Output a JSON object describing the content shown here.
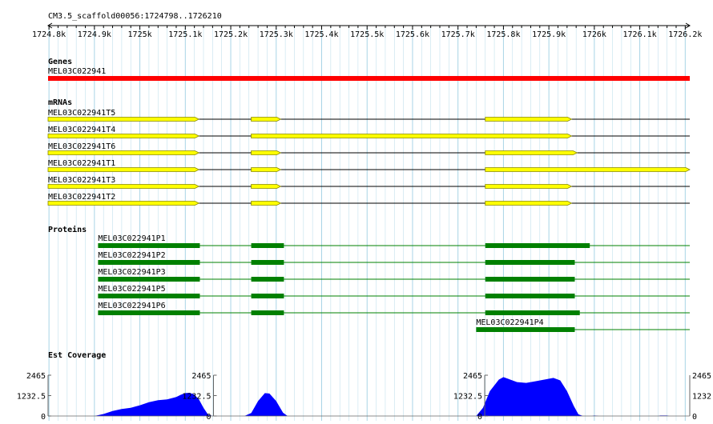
{
  "region": {
    "label": "CM3.5_scaffold00056:1724798..1726210",
    "start": 1724798,
    "end": 1726210
  },
  "ruler": {
    "ticks": [
      {
        "pos": 1724800,
        "label": "1724.8k"
      },
      {
        "pos": 1724900,
        "label": "1724.9k"
      },
      {
        "pos": 1725000,
        "label": "1725k"
      },
      {
        "pos": 1725100,
        "label": "1725.1k"
      },
      {
        "pos": 1725200,
        "label": "1725.2k"
      },
      {
        "pos": 1725300,
        "label": "1725.3k"
      },
      {
        "pos": 1725400,
        "label": "1725.4k"
      },
      {
        "pos": 1725500,
        "label": "1725.5k"
      },
      {
        "pos": 1725600,
        "label": "1725.6k"
      },
      {
        "pos": 1725700,
        "label": "1725.7k"
      },
      {
        "pos": 1725800,
        "label": "1725.8k"
      },
      {
        "pos": 1725900,
        "label": "1725.9k"
      },
      {
        "pos": 1726000,
        "label": "1726k"
      },
      {
        "pos": 1726100,
        "label": "1726.1k"
      },
      {
        "pos": 1726200,
        "label": "1726.2k"
      }
    ]
  },
  "colors": {
    "grid": "#a8d4e6",
    "gene": "#ff0000",
    "mrna_fill": "#ffff00",
    "mrna_outline": "#888800",
    "protein": "#008000",
    "coverage": "#0000ff",
    "line": "#000000"
  },
  "tracks": {
    "genes": {
      "title": "Genes",
      "items": [
        {
          "name": "MEL03C022941",
          "start": 1724798,
          "end": 1726210
        }
      ]
    },
    "mrnas": {
      "title": "mRNAs",
      "items": [
        {
          "name": "MEL03C022941T5",
          "exons": [
            [
              1724798,
              1725130
            ],
            [
              1725245,
              1725310
            ],
            [
              1725760,
              1725950
            ]
          ]
        },
        {
          "name": "MEL03C022941T4",
          "exons": [
            [
              1724798,
              1725130
            ],
            [
              1725245,
              1725950
            ]
          ]
        },
        {
          "name": "MEL03C022941T6",
          "exons": [
            [
              1724798,
              1725130
            ],
            [
              1725245,
              1725310
            ],
            [
              1725760,
              1725962
            ]
          ]
        },
        {
          "name": "MEL03C022941T1",
          "exons": [
            [
              1724798,
              1725130
            ],
            [
              1725245,
              1725310
            ],
            [
              1725760,
              1726210
            ]
          ]
        },
        {
          "name": "MEL03C022941T3",
          "exons": [
            [
              1724798,
              1725130
            ],
            [
              1725245,
              1725310
            ],
            [
              1725760,
              1725950
            ]
          ]
        },
        {
          "name": "MEL03C022941T2",
          "exons": [
            [
              1724798,
              1725130
            ],
            [
              1725245,
              1725310
            ],
            [
              1725760,
              1725950
            ]
          ]
        }
      ]
    },
    "proteins": {
      "title": "Proteins",
      "items": [
        {
          "name": "MEL03C022941P1",
          "start": 1724908,
          "exons": [
            [
              1724908,
              1725132
            ],
            [
              1725245,
              1725317
            ],
            [
              1725760,
              1725990
            ]
          ]
        },
        {
          "name": "MEL03C022941P2",
          "start": 1724908,
          "exons": [
            [
              1724908,
              1725132
            ],
            [
              1725245,
              1725317
            ],
            [
              1725760,
              1725957
            ]
          ]
        },
        {
          "name": "MEL03C022941P3",
          "start": 1724908,
          "exons": [
            [
              1724908,
              1725132
            ],
            [
              1725245,
              1725317
            ],
            [
              1725760,
              1725957
            ]
          ]
        },
        {
          "name": "MEL03C022941P5",
          "start": 1724908,
          "exons": [
            [
              1724908,
              1725132
            ],
            [
              1725245,
              1725317
            ],
            [
              1725760,
              1725957
            ]
          ]
        },
        {
          "name": "MEL03C022941P6",
          "start": 1724908,
          "exons": [
            [
              1724908,
              1725132
            ],
            [
              1725245,
              1725317
            ],
            [
              1725760,
              1725968
            ]
          ]
        },
        {
          "name": "MEL03C022941P4",
          "start": 1725740,
          "exons": [
            [
              1725740,
              1725957
            ]
          ]
        }
      ]
    },
    "coverage": {
      "title": "Est Coverage",
      "max_label": "2465",
      "mid_label": "1232.5",
      "min_label": "0",
      "max": 2465,
      "profile": [
        [
          1724798,
          0
        ],
        [
          1724900,
          0
        ],
        [
          1724920,
          120
        ],
        [
          1724940,
          300
        ],
        [
          1724960,
          420
        ],
        [
          1724980,
          500
        ],
        [
          1725000,
          650
        ],
        [
          1725020,
          830
        ],
        [
          1725040,
          950
        ],
        [
          1725060,
          1000
        ],
        [
          1725080,
          1150
        ],
        [
          1725090,
          1280
        ],
        [
          1725100,
          1380
        ],
        [
          1725110,
          1400
        ],
        [
          1725120,
          1280
        ],
        [
          1725130,
          1000
        ],
        [
          1725140,
          500
        ],
        [
          1725150,
          80
        ],
        [
          1725160,
          0
        ],
        [
          1725230,
          0
        ],
        [
          1725245,
          180
        ],
        [
          1725260,
          900
        ],
        [
          1725275,
          1380
        ],
        [
          1725285,
          1360
        ],
        [
          1725300,
          900
        ],
        [
          1725315,
          200
        ],
        [
          1725325,
          0
        ],
        [
          1725740,
          0
        ],
        [
          1725755,
          500
        ],
        [
          1725770,
          1500
        ],
        [
          1725790,
          2200
        ],
        [
          1725800,
          2350
        ],
        [
          1725815,
          2200
        ],
        [
          1725830,
          2050
        ],
        [
          1725850,
          2000
        ],
        [
          1725870,
          2100
        ],
        [
          1725890,
          2200
        ],
        [
          1725910,
          2300
        ],
        [
          1725925,
          2150
        ],
        [
          1725940,
          1500
        ],
        [
          1725955,
          600
        ],
        [
          1725965,
          100
        ],
        [
          1725975,
          0
        ],
        [
          1725995,
          0
        ],
        [
          1726000,
          30
        ],
        [
          1726010,
          0
        ],
        [
          1726140,
          0
        ],
        [
          1726145,
          30
        ],
        [
          1726160,
          30
        ],
        [
          1726165,
          0
        ],
        [
          1726210,
          0
        ]
      ],
      "panels": [
        {
          "start": 1724798,
          "end": 1725162
        },
        {
          "start": 1725162,
          "end": 1725750
        },
        {
          "start": 1725750,
          "end": 1726210
        }
      ]
    }
  }
}
